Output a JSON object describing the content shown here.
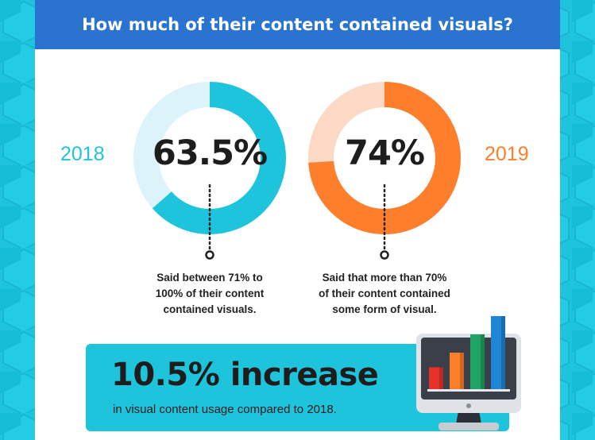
{
  "header": {
    "title": "How much of their content contained visuals?"
  },
  "colors": {
    "blue_primary": "#1ec3dc",
    "blue_light": "#dcf4f9",
    "orange_primary": "#fd7e2b",
    "orange_light": "#fcd9c4",
    "header_bg": "#2a74d0"
  },
  "chart_data": {
    "type": "pie",
    "title": "How much of their content contained visuals?",
    "series": [
      {
        "name": "2018",
        "value": 63.5,
        "value_label": "63.5%",
        "caption": [
          "Said between 71% to",
          "100% of their content",
          "contained visuals."
        ]
      },
      {
        "name": "2019",
        "value": 74,
        "value_label": "74%",
        "caption": [
          "Said that more than 70%",
          "of their content contained",
          "some form of visual."
        ]
      }
    ]
  },
  "banner": {
    "headline": "10.5% increase",
    "subtext": "in visual content usage compared to 2018."
  },
  "illustration": {
    "icon": "monitor-bar-chart-icon",
    "bar_values": [
      0.3,
      0.5,
      0.75,
      1.0
    ],
    "bar_colors": [
      "#e5322b",
      "#fd7e2b",
      "#1fa463",
      "#1f86d6"
    ]
  }
}
